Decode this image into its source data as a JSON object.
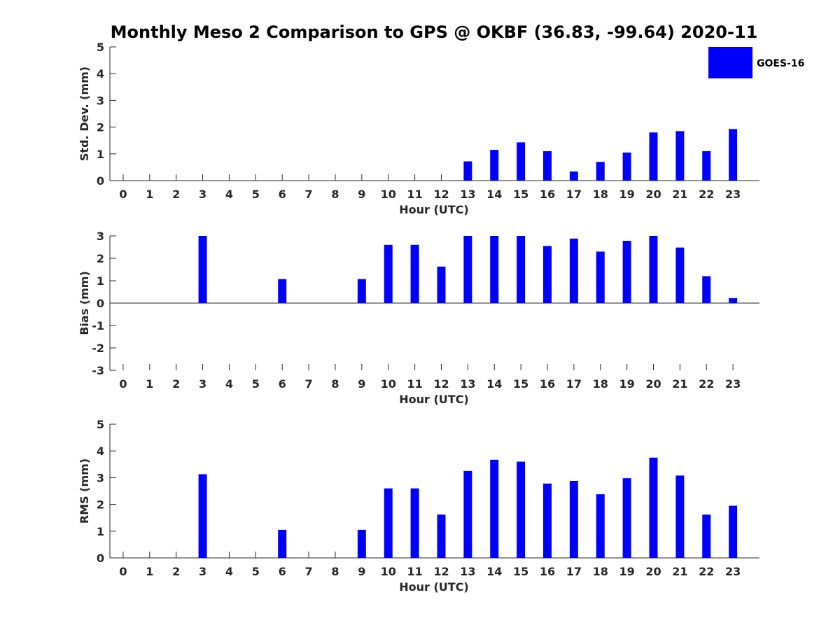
{
  "colors": {
    "bar": "#0000ff",
    "axis": "#262626",
    "text": "#262626"
  },
  "chart_data": [
    {
      "type": "bar",
      "title": "Monthly Meso 2 Comparison to GPS @ OKBF (36.83, -99.64) 2020-11",
      "xlabel": "Hour (UTC)",
      "ylabel": "Std. Dev. (mm)",
      "ylim": [
        0,
        5
      ],
      "yticks": [
        0,
        1,
        2,
        3,
        4,
        5
      ],
      "categories": [
        0,
        1,
        2,
        3,
        4,
        5,
        6,
        7,
        8,
        9,
        10,
        11,
        12,
        13,
        14,
        15,
        16,
        17,
        18,
        19,
        20,
        21,
        22,
        23
      ],
      "series": [
        {
          "name": "GOES-16",
          "values": [
            null,
            null,
            null,
            null,
            null,
            null,
            null,
            null,
            null,
            null,
            null,
            null,
            null,
            0.72,
            1.15,
            1.43,
            1.1,
            0.34,
            0.7,
            1.05,
            1.8,
            1.85,
            1.1,
            1.93
          ]
        }
      ],
      "legend": {
        "position": "top-right",
        "entries": [
          "GOES-16"
        ]
      }
    },
    {
      "type": "bar",
      "xlabel": "Hour (UTC)",
      "ylabel": "Bias (mm)",
      "ylim": [
        -3,
        3
      ],
      "yticks": [
        -3,
        -2,
        -1,
        0,
        1,
        2,
        3
      ],
      "categories": [
        0,
        1,
        2,
        3,
        4,
        5,
        6,
        7,
        8,
        9,
        10,
        11,
        12,
        13,
        14,
        15,
        16,
        17,
        18,
        19,
        20,
        21,
        22,
        23
      ],
      "series": [
        {
          "name": "GOES-16",
          "values": [
            null,
            null,
            null,
            3.0,
            null,
            null,
            1.07,
            null,
            null,
            1.07,
            2.6,
            2.6,
            1.63,
            3.0,
            3.0,
            3.0,
            2.55,
            2.88,
            2.3,
            2.78,
            3.0,
            2.48,
            1.2,
            0.22
          ]
        }
      ]
    },
    {
      "type": "bar",
      "xlabel": "Hour (UTC)",
      "ylabel": "RMS (mm)",
      "ylim": [
        0,
        5
      ],
      "yticks": [
        0,
        1,
        2,
        3,
        4,
        5
      ],
      "categories": [
        0,
        1,
        2,
        3,
        4,
        5,
        6,
        7,
        8,
        9,
        10,
        11,
        12,
        13,
        14,
        15,
        16,
        17,
        18,
        19,
        20,
        21,
        22,
        23
      ],
      "series": [
        {
          "name": "GOES-16",
          "values": [
            null,
            null,
            null,
            3.13,
            null,
            null,
            1.05,
            null,
            null,
            1.05,
            2.6,
            2.6,
            1.62,
            3.25,
            3.67,
            3.6,
            2.78,
            2.88,
            2.38,
            2.98,
            3.75,
            3.08,
            1.62,
            1.95
          ]
        }
      ]
    }
  ]
}
